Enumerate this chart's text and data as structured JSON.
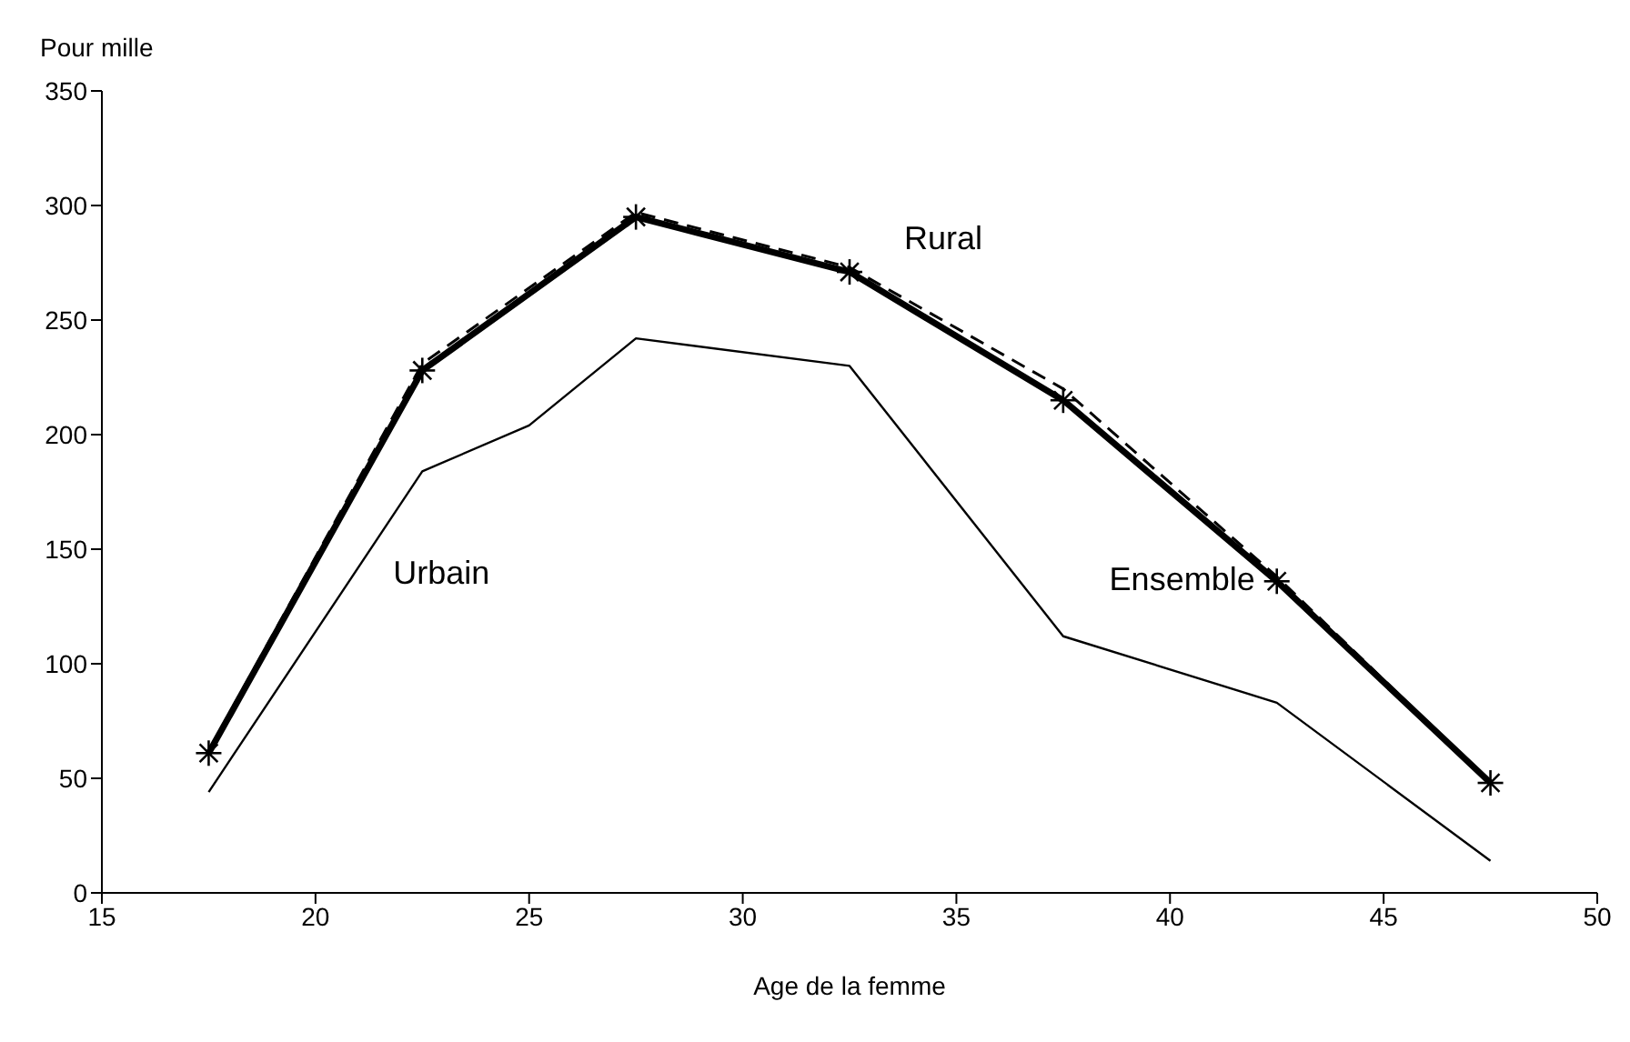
{
  "chart_data": {
    "type": "line",
    "xlabel": "Age de la femme",
    "ylabel": "Pour mille",
    "x": [
      17.5,
      22.5,
      27.5,
      32.5,
      37.5,
      42.5,
      47.5
    ],
    "series": [
      {
        "name": "Ensemble",
        "color": "#000000",
        "marker": "cross",
        "line_style": "solid",
        "values": [
          61,
          228,
          295,
          271,
          215,
          136,
          48
        ]
      },
      {
        "name": "Rural",
        "color": "#000000",
        "marker": "none",
        "line_style": "dashed",
        "values": [
          62,
          231,
          297,
          273,
          220,
          138,
          48
        ]
      },
      {
        "name": "Urbain",
        "color": "#000000",
        "marker": "none",
        "line_style": "solid",
        "x": [
          17.5,
          22.5,
          25,
          27.5,
          32.5,
          37.5,
          42.5,
          47.5
        ],
        "values": [
          44,
          184,
          204,
          242,
          230,
          112,
          83,
          14
        ]
      }
    ],
    "xlim": [
      15,
      50
    ],
    "xticks": [
      15,
      20,
      25,
      30,
      35,
      40,
      45,
      50
    ],
    "ylim": [
      0,
      350
    ],
    "yticks": [
      0,
      50,
      100,
      150,
      200,
      250,
      300,
      350
    ],
    "grid": false,
    "legend": false
  }
}
